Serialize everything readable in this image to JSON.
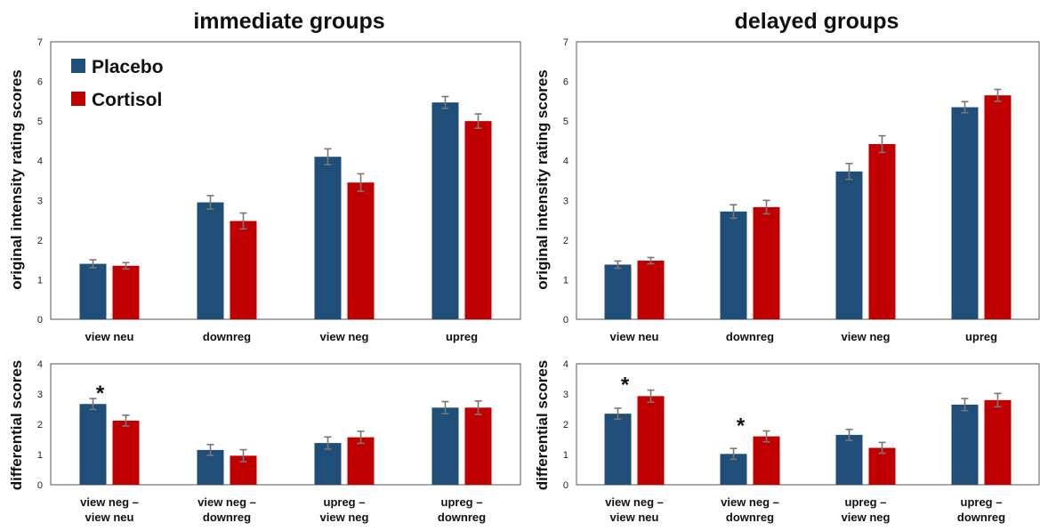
{
  "legend": [
    {
      "name": "Placebo",
      "color": "#1f4e79"
    },
    {
      "name": "Cortisol",
      "color": "#c00000"
    }
  ],
  "chart_data": [
    {
      "id": "imm-top",
      "type": "bar",
      "title": "immediate groups",
      "ylabel": "original intensity rating scores",
      "ylim": [
        0,
        7
      ],
      "yticks": [
        0,
        1,
        2,
        3,
        4,
        5,
        6,
        7
      ],
      "categories": [
        "view neu",
        "downreg",
        "view neg",
        "upreg"
      ],
      "series": [
        {
          "name": "Placebo",
          "color": "#1f4e79",
          "values": [
            1.4,
            2.95,
            4.1,
            5.47
          ],
          "errors": [
            0.1,
            0.17,
            0.2,
            0.15
          ]
        },
        {
          "name": "Cortisol",
          "color": "#c00000",
          "values": [
            1.35,
            2.48,
            3.45,
            5.0
          ],
          "errors": [
            0.08,
            0.2,
            0.22,
            0.18
          ]
        }
      ],
      "annotations": []
    },
    {
      "id": "del-top",
      "type": "bar",
      "title": "delayed groups",
      "ylabel": "original intensity rating scores",
      "ylim": [
        0,
        7
      ],
      "yticks": [
        0,
        1,
        2,
        3,
        4,
        5,
        6,
        7
      ],
      "categories": [
        "view neu",
        "downreg",
        "view neg",
        "upreg"
      ],
      "series": [
        {
          "name": "Placebo",
          "color": "#1f4e79",
          "values": [
            1.38,
            2.72,
            3.73,
            5.35
          ],
          "errors": [
            0.09,
            0.17,
            0.2,
            0.14
          ]
        },
        {
          "name": "Cortisol",
          "color": "#c00000",
          "values": [
            1.48,
            2.83,
            4.42,
            5.65
          ],
          "errors": [
            0.08,
            0.17,
            0.21,
            0.15
          ]
        }
      ],
      "annotations": []
    },
    {
      "id": "imm-bot",
      "type": "bar",
      "title": "",
      "ylabel": "differential scores",
      "ylim": [
        0,
        4
      ],
      "yticks": [
        0,
        1,
        2,
        3,
        4
      ],
      "categories": [
        [
          "view neg –",
          "view neu"
        ],
        [
          "view neg –",
          "downreg"
        ],
        [
          "upreg –",
          "view neg"
        ],
        [
          "upreg –",
          "downreg"
        ]
      ],
      "series": [
        {
          "name": "Placebo",
          "color": "#1f4e79",
          "values": [
            2.67,
            1.15,
            1.38,
            2.55
          ],
          "errors": [
            0.18,
            0.18,
            0.2,
            0.2
          ]
        },
        {
          "name": "Cortisol",
          "color": "#c00000",
          "values": [
            2.12,
            0.96,
            1.57,
            2.55
          ],
          "errors": [
            0.18,
            0.2,
            0.2,
            0.22
          ]
        }
      ],
      "annotations": [
        {
          "category": 0,
          "text": "*"
        }
      ]
    },
    {
      "id": "del-bot",
      "type": "bar",
      "title": "",
      "ylabel": "differential scores",
      "ylim": [
        0,
        4
      ],
      "yticks": [
        0,
        1,
        2,
        3,
        4
      ],
      "categories": [
        [
          "view neg –",
          "view neu"
        ],
        [
          "view neg –",
          "downreg"
        ],
        [
          "upreg –",
          "view neg"
        ],
        [
          "upreg –",
          "downreg"
        ]
      ],
      "series": [
        {
          "name": "Placebo",
          "color": "#1f4e79",
          "values": [
            2.35,
            1.02,
            1.65,
            2.65
          ],
          "errors": [
            0.18,
            0.18,
            0.18,
            0.2
          ]
        },
        {
          "name": "Cortisol",
          "color": "#c00000",
          "values": [
            2.93,
            1.6,
            1.22,
            2.8
          ],
          "errors": [
            0.2,
            0.18,
            0.18,
            0.22
          ]
        }
      ],
      "annotations": [
        {
          "category": 0,
          "text": "*"
        },
        {
          "category": 1,
          "text": "*"
        }
      ]
    }
  ]
}
